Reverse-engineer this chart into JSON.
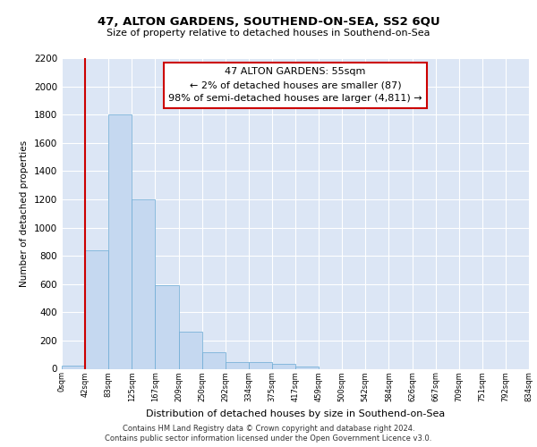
{
  "title": "47, ALTON GARDENS, SOUTHEND-ON-SEA, SS2 6QU",
  "subtitle": "Size of property relative to detached houses in Southend-on-Sea",
  "xlabel": "Distribution of detached houses by size in Southend-on-Sea",
  "ylabel": "Number of detached properties",
  "bar_values": [
    25,
    840,
    1800,
    1200,
    590,
    260,
    115,
    50,
    48,
    32,
    18,
    0,
    0,
    0,
    0,
    0,
    0,
    0,
    0,
    0
  ],
  "bin_labels": [
    "0sqm",
    "42sqm",
    "83sqm",
    "125sqm",
    "167sqm",
    "209sqm",
    "250sqm",
    "292sqm",
    "334sqm",
    "375sqm",
    "417sqm",
    "459sqm",
    "500sqm",
    "542sqm",
    "584sqm",
    "626sqm",
    "667sqm",
    "709sqm",
    "751sqm",
    "792sqm",
    "834sqm"
  ],
  "bar_color": "#c5d8f0",
  "bar_edge_color": "#6aaad4",
  "background_color": "#dce6f5",
  "grid_color": "#ffffff",
  "annotation_box_color": "#cc0000",
  "annotation_text": "47 ALTON GARDENS: 55sqm\n← 2% of detached houses are smaller (87)\n98% of semi-detached houses are larger (4,811) →",
  "red_line_x": 1,
  "ylim": [
    0,
    2200
  ],
  "yticks": [
    0,
    200,
    400,
    600,
    800,
    1000,
    1200,
    1400,
    1600,
    1800,
    2000,
    2200
  ],
  "footer_line1": "Contains HM Land Registry data © Crown copyright and database right 2024.",
  "footer_line2": "Contains public sector information licensed under the Open Government Licence v3.0."
}
